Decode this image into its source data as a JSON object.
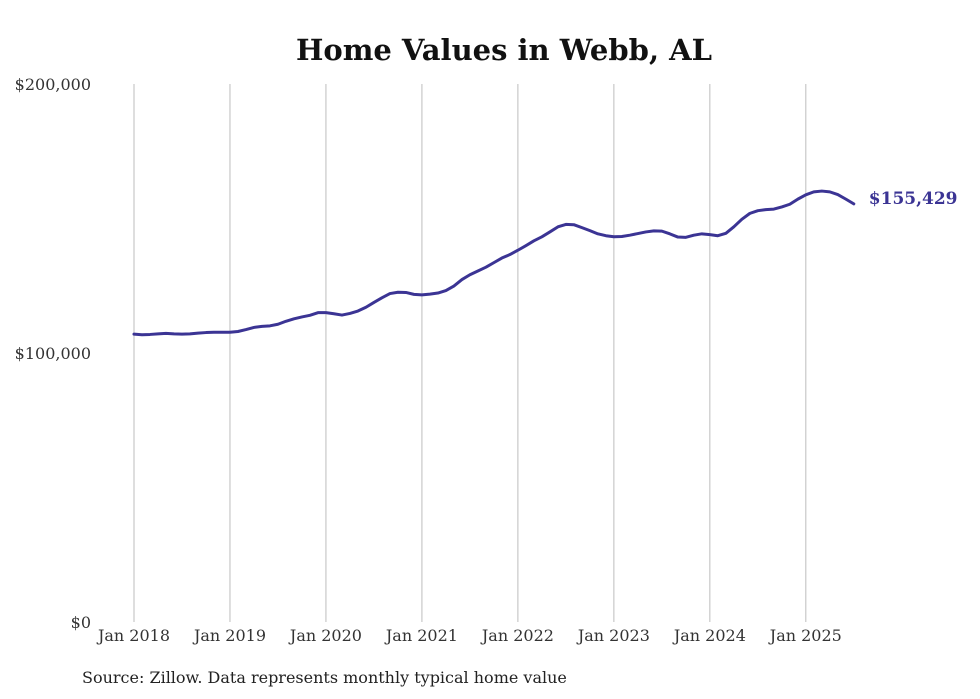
{
  "chart_data": {
    "type": "line",
    "title": "Home Values in Webb, AL",
    "xlabel": "",
    "ylabel": "",
    "ylim": [
      0,
      200000
    ],
    "y_ticks": [
      {
        "value": 0,
        "label": "$0"
      },
      {
        "value": 100000,
        "label": "$100,000"
      },
      {
        "value": 200000,
        "label": "$200,000"
      }
    ],
    "x_ticks": [
      {
        "value": 2018.0,
        "label": "Jan 2018"
      },
      {
        "value": 2019.0,
        "label": "Jan 2019"
      },
      {
        "value": 2020.0,
        "label": "Jan 2020"
      },
      {
        "value": 2021.0,
        "label": "Jan 2021"
      },
      {
        "value": 2022.0,
        "label": "Jan 2022"
      },
      {
        "value": 2023.0,
        "label": "Jan 2023"
      },
      {
        "value": 2024.0,
        "label": "Jan 2024"
      },
      {
        "value": 2025.0,
        "label": "Jan 2025"
      }
    ],
    "xlim": [
      2017.75,
      2025.95
    ],
    "grid": "vertical",
    "color": "#3b3494",
    "end_label": "$155,429",
    "series": [
      {
        "x": [
          2018.0,
          2018.083,
          2018.167,
          2018.25,
          2018.333,
          2018.417,
          2018.5,
          2018.583,
          2018.667,
          2018.75,
          2018.833,
          2018.917,
          2019.0,
          2019.083,
          2019.167,
          2019.25,
          2019.333,
          2019.417,
          2019.5,
          2019.583,
          2019.667,
          2019.75,
          2019.833,
          2019.917,
          2020.0,
          2020.083,
          2020.167,
          2020.25,
          2020.333,
          2020.417,
          2020.5,
          2020.583,
          2020.667,
          2020.75,
          2020.833,
          2020.917,
          2021.0,
          2021.083,
          2021.167,
          2021.25,
          2021.333,
          2021.417,
          2021.5,
          2021.583,
          2021.667,
          2021.75,
          2021.833,
          2021.917,
          2022.0,
          2022.083,
          2022.167,
          2022.25,
          2022.333,
          2022.417,
          2022.5,
          2022.583,
          2022.667,
          2022.75,
          2022.833,
          2022.917,
          2023.0,
          2023.083,
          2023.167,
          2023.25,
          2023.333,
          2023.417,
          2023.5,
          2023.583,
          2023.667,
          2023.75,
          2023.833,
          2023.917,
          2024.0,
          2024.083,
          2024.167,
          2024.25,
          2024.333,
          2024.417,
          2024.5,
          2024.583,
          2024.667,
          2024.75,
          2024.833,
          2024.917,
          2025.0,
          2025.083,
          2025.167,
          2025.25,
          2025.333,
          2025.417,
          2025.5
        ],
        "y": [
          107000,
          106800,
          106900,
          107100,
          107300,
          107100,
          107000,
          107100,
          107400,
          107600,
          107700,
          107700,
          107700,
          108000,
          108700,
          109500,
          109900,
          110100,
          110700,
          111800,
          112700,
          113400,
          114000,
          115000,
          115000,
          114600,
          114100,
          114700,
          115600,
          117000,
          118800,
          120500,
          122100,
          122600,
          122500,
          121800,
          121600,
          121900,
          122300,
          123200,
          124900,
          127300,
          129100,
          130500,
          131900,
          133600,
          135300,
          136600,
          138200,
          139900,
          141700,
          143200,
          145000,
          146900,
          147800,
          147700,
          146600,
          145500,
          144300,
          143600,
          143200,
          143300,
          143800,
          144400,
          145000,
          145400,
          145300,
          144300,
          143100,
          143000,
          143800,
          144300,
          144000,
          143600,
          144500,
          146900,
          149700,
          151900,
          152900,
          153300,
          153500,
          154300,
          155300,
          157200,
          158800,
          159900,
          160200,
          159900,
          158900,
          157200,
          155429
        ]
      }
    ]
  },
  "footer": {
    "source": "Source: Zillow. Data represents monthly typical home value"
  }
}
